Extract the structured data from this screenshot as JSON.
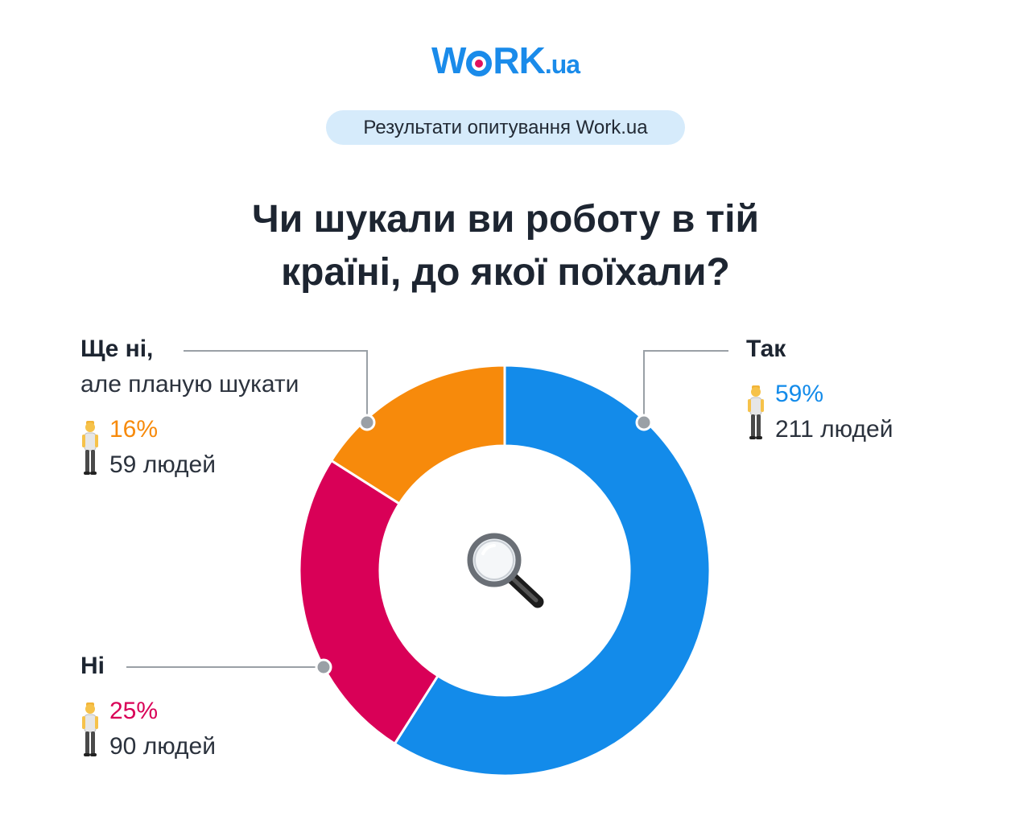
{
  "logo": {
    "text_main": "W",
    "text_after_o": "RK",
    "text_domain": ".ua"
  },
  "badge": "Результати опитування Work.ua",
  "title_lines": [
    "Чи шукали ви роботу в тій",
    "країні, до якої поїхали?"
  ],
  "icons": {
    "center": "magnifier-icon",
    "respondent": "person-icon"
  },
  "colors": {
    "yes": "#138bea",
    "no": "#d90057",
    "not_yet": "#f78a0b",
    "line": "#9aa0a6"
  },
  "chart_data": {
    "type": "pie",
    "donut": true,
    "title": "Чи шукали ви роботу в тій країні, до якої поїхали?",
    "slices": [
      {
        "label": "Так",
        "sublabel": "",
        "percent": 59,
        "percent_text": "59%",
        "count": 211,
        "count_text": "211 людей",
        "color": "#138bea"
      },
      {
        "label": "Ні",
        "sublabel": "",
        "percent": 25,
        "percent_text": "25%",
        "count": 90,
        "count_text": "90 людей",
        "color": "#d90057"
      },
      {
        "label": "Ще ні,",
        "sublabel": "але планую шукати",
        "percent": 16,
        "percent_text": "16%",
        "count": 59,
        "count_text": "59 людей",
        "color": "#f78a0b"
      }
    ]
  }
}
